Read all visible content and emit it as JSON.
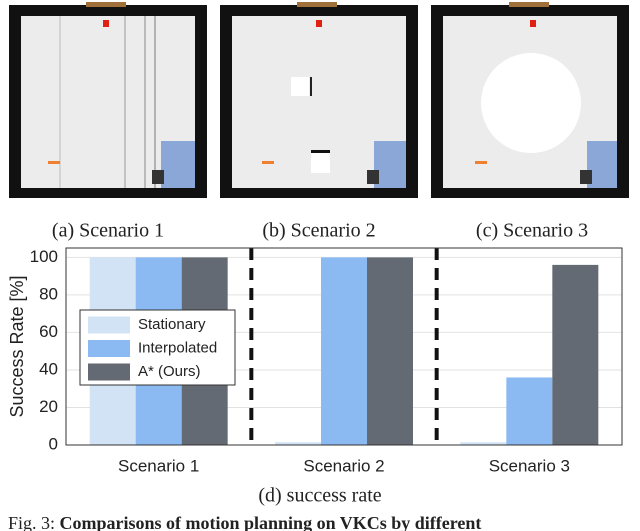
{
  "panels": [
    {
      "caption": "(a) Scenario 1"
    },
    {
      "caption": "(b) Scenario 2"
    },
    {
      "caption": "(c) Scenario 3"
    }
  ],
  "chart_data": {
    "type": "bar",
    "title": "(d) success rate",
    "ylabel": "Success Rate [%]",
    "categories": [
      "Scenario 1",
      "Scenario 2",
      "Scenario 3"
    ],
    "series": [
      {
        "name": "Stationary",
        "color": "#d2e3f6",
        "values": [
          100,
          1.5,
          1.5
        ]
      },
      {
        "name": "Interpolated",
        "color": "#8bbaf3",
        "values": [
          100,
          100,
          36
        ]
      },
      {
        "name": "A* (Ours)",
        "color": "#646a73",
        "values": [
          100,
          100,
          96
        ]
      }
    ],
    "ylim": [
      0,
      105
    ],
    "yticks": [
      0,
      20,
      40,
      60,
      80,
      100
    ],
    "grid": true,
    "legend": "left"
  },
  "caption": {
    "label": "Fig. 3:",
    "text": "Comparisons of motion planning on VKCs by different"
  }
}
